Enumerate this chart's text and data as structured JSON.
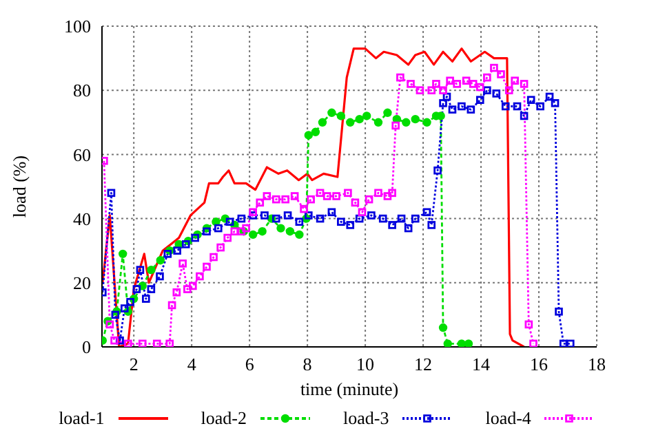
{
  "chart_data": {
    "type": "line",
    "xlabel": "time (minute)",
    "ylabel": "load (%)",
    "xlim": [
      0.9,
      18
    ],
    "xticks": [
      2,
      4,
      6,
      8,
      10,
      12,
      14,
      16,
      18
    ],
    "ylim": [
      0,
      100
    ],
    "yticks": [
      0,
      20,
      40,
      60,
      80,
      100
    ],
    "grid": true,
    "legend": "bottom",
    "series": [
      {
        "name": "load-1",
        "color": "#ff0000",
        "marker": "none",
        "line_style": "solid",
        "x": [
          0.92,
          1.17,
          1.49,
          1.8,
          2.0,
          2.36,
          2.52,
          3.0,
          3.56,
          3.96,
          4.44,
          4.6,
          4.92,
          5.08,
          5.28,
          5.48,
          5.88,
          6.2,
          6.6,
          7.0,
          7.3,
          7.7,
          8.0,
          8.16,
          8.56,
          9.04,
          9.36,
          9.6,
          10.0,
          10.37,
          10.64,
          11.09,
          11.49,
          11.73,
          12.05,
          12.37,
          12.69,
          13.01,
          13.33,
          13.65,
          14.13,
          14.45,
          14.9,
          15.0,
          15.09,
          15.49
        ],
        "values": [
          20,
          41,
          0,
          1,
          18,
          29,
          20,
          30,
          34,
          41,
          45,
          51,
          51,
          53,
          55,
          51,
          51,
          49,
          56,
          54,
          55,
          52,
          54,
          52,
          54,
          53,
          84,
          93,
          93,
          90,
          92,
          91,
          88,
          91,
          92,
          88,
          92,
          89,
          93,
          89,
          92,
          90,
          90,
          4,
          2,
          0
        ]
      },
      {
        "name": "load-2",
        "color": "#00dd00",
        "marker": "circle",
        "line_style": "dashed",
        "x": [
          0.92,
          1.1,
          1.41,
          1.62,
          1.8,
          2.0,
          2.3,
          2.6,
          2.92,
          3.24,
          3.56,
          3.88,
          4.2,
          4.52,
          4.84,
          5.16,
          5.48,
          5.8,
          6.12,
          6.44,
          6.76,
          7.08,
          7.4,
          7.72,
          7.96,
          8.04,
          8.28,
          8.52,
          8.84,
          9.16,
          9.48,
          9.8,
          10.05,
          10.45,
          10.77,
          11.09,
          11.41,
          11.73,
          12.13,
          12.45,
          12.61,
          12.69,
          12.85,
          13.33,
          13.57
        ],
        "values": [
          2,
          8,
          11,
          29,
          11,
          15,
          19,
          24,
          27,
          30,
          32,
          33,
          35,
          37,
          39,
          40,
          38,
          36,
          35,
          36,
          40,
          37,
          36,
          35,
          40,
          66,
          67,
          70,
          73,
          72,
          70,
          71,
          72,
          70,
          73,
          71,
          70,
          71,
          70,
          72,
          72,
          6,
          1,
          1,
          1
        ]
      },
      {
        "name": "load-3",
        "color": "#0000dd",
        "marker": "square",
        "line_style": "dotted",
        "x": [
          0.92,
          1.22,
          1.36,
          1.52,
          1.68,
          1.88,
          2.1,
          2.22,
          2.42,
          2.6,
          2.9,
          3.17,
          3.5,
          3.8,
          4.12,
          4.52,
          4.92,
          5.32,
          5.72,
          6.12,
          6.52,
          6.92,
          7.32,
          7.72,
          8.04,
          8.44,
          8.84,
          9.16,
          9.48,
          9.8,
          10.21,
          10.61,
          10.93,
          11.25,
          11.49,
          11.73,
          12.13,
          12.29,
          12.5,
          12.69,
          12.82,
          13.01,
          13.33,
          13.65,
          13.97,
          14.21,
          14.53,
          14.85,
          15.25,
          15.49,
          15.73,
          16.05,
          16.37,
          16.56,
          16.69,
          16.85,
          17.09
        ],
        "values": [
          17,
          48,
          10,
          2,
          12,
          14,
          18,
          24,
          15,
          18,
          22,
          29,
          30,
          32,
          34,
          36,
          37,
          39,
          40,
          41,
          41,
          40,
          41,
          39,
          41,
          40,
          42,
          39,
          38,
          40,
          41,
          40,
          38,
          40,
          37,
          40,
          42,
          38,
          55,
          76,
          78,
          74,
          75,
          74,
          77,
          80,
          79,
          75,
          75,
          72,
          77,
          75,
          78,
          76,
          11,
          1,
          1
        ]
      },
      {
        "name": "load-4",
        "color": "#ff00ff",
        "marker": "square",
        "line_style": "dotted",
        "x": [
          0.97,
          1.17,
          1.33,
          1.8,
          2.3,
          2.8,
          3.24,
          3.32,
          3.48,
          3.69,
          3.85,
          4.04,
          4.28,
          4.52,
          4.76,
          5.0,
          5.24,
          5.48,
          5.72,
          5.88,
          6.12,
          6.36,
          6.6,
          6.92,
          7.24,
          7.56,
          7.88,
          8.12,
          8.44,
          8.68,
          9.0,
          9.4,
          9.65,
          9.89,
          10.13,
          10.45,
          10.77,
          10.93,
          11.05,
          11.21,
          11.57,
          11.89,
          12.29,
          12.45,
          12.69,
          12.93,
          13.17,
          13.49,
          13.73,
          13.97,
          14.21,
          14.45,
          14.69,
          14.97,
          15.17,
          15.49,
          15.65,
          15.81
        ],
        "values": [
          58,
          7,
          2,
          1,
          1,
          1,
          1,
          13,
          17,
          26,
          18,
          19,
          22,
          25,
          28,
          31,
          34,
          36,
          36,
          37,
          42,
          45,
          47,
          46,
          46,
          47,
          43,
          46,
          48,
          47,
          47,
          48,
          45,
          42,
          46,
          48,
          47,
          48,
          69,
          84,
          82,
          80,
          80,
          82,
          80,
          83,
          82,
          83,
          82,
          81,
          84,
          87,
          85,
          80,
          83,
          82,
          7,
          1
        ]
      }
    ]
  }
}
